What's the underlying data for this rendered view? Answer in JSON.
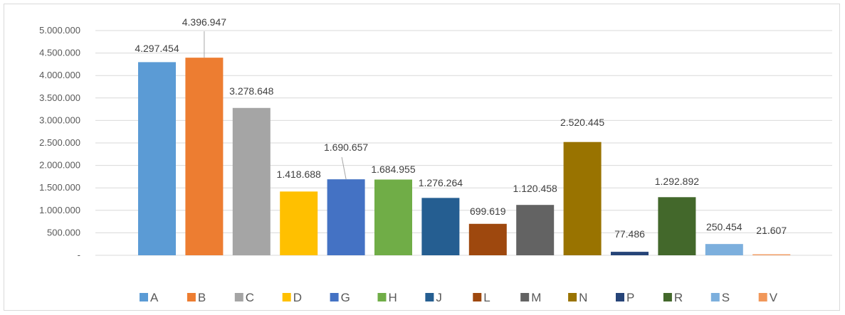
{
  "chart_data": {
    "type": "bar",
    "title": "",
    "xlabel": "",
    "ylabel": "",
    "ylim": [
      0,
      5000000
    ],
    "yticks": [
      {
        "value": 0,
        "label": "-"
      },
      {
        "value": 500000,
        "label": "500.000"
      },
      {
        "value": 1000000,
        "label": "1.000.000"
      },
      {
        "value": 1500000,
        "label": "1.500.000"
      },
      {
        "value": 2000000,
        "label": "2.000.000"
      },
      {
        "value": 2500000,
        "label": "2.500.000"
      },
      {
        "value": 3000000,
        "label": "3.000.000"
      },
      {
        "value": 3500000,
        "label": "3.500.000"
      },
      {
        "value": 4000000,
        "label": "4.000.000"
      },
      {
        "value": 4500000,
        "label": "4.500.000"
      },
      {
        "value": 5000000,
        "label": "5.000.000"
      }
    ],
    "grid": true,
    "legend_position": "bottom",
    "series": [
      {
        "name": "A",
        "value": 4297454,
        "label": "4.297.454",
        "color": "#5b9bd5"
      },
      {
        "name": "B",
        "value": 4396947,
        "label": "4.396.947",
        "color": "#ed7d31"
      },
      {
        "name": "C",
        "value": 3278648,
        "label": "3.278.648",
        "color": "#a5a5a5"
      },
      {
        "name": "D",
        "value": 1418688,
        "label": "1.418.688",
        "color": "#ffc000"
      },
      {
        "name": "G",
        "value": 1690657,
        "label": "1.690.657",
        "color": "#4472c4"
      },
      {
        "name": "H",
        "value": 1684955,
        "label": "1.684.955",
        "color": "#70ad47"
      },
      {
        "name": "J",
        "value": 1276264,
        "label": "1.276.264",
        "color": "#255e91"
      },
      {
        "name": "L",
        "value": 699619,
        "label": "699.619",
        "color": "#9e480e"
      },
      {
        "name": "M",
        "value": 1120458,
        "label": "1.120.458",
        "color": "#636363"
      },
      {
        "name": "N",
        "value": 2520445,
        "label": "2.520.445",
        "color": "#997300"
      },
      {
        "name": "P",
        "value": 77486,
        "label": "77.486",
        "color": "#264478"
      },
      {
        "name": "R",
        "value": 1292892,
        "label": "1.292.892",
        "color": "#43682b"
      },
      {
        "name": "S",
        "value": 250454,
        "label": "250.454",
        "color": "#7cafdd"
      },
      {
        "name": "V",
        "value": 21607,
        "label": "21.607",
        "color": "#f1975a"
      }
    ]
  }
}
